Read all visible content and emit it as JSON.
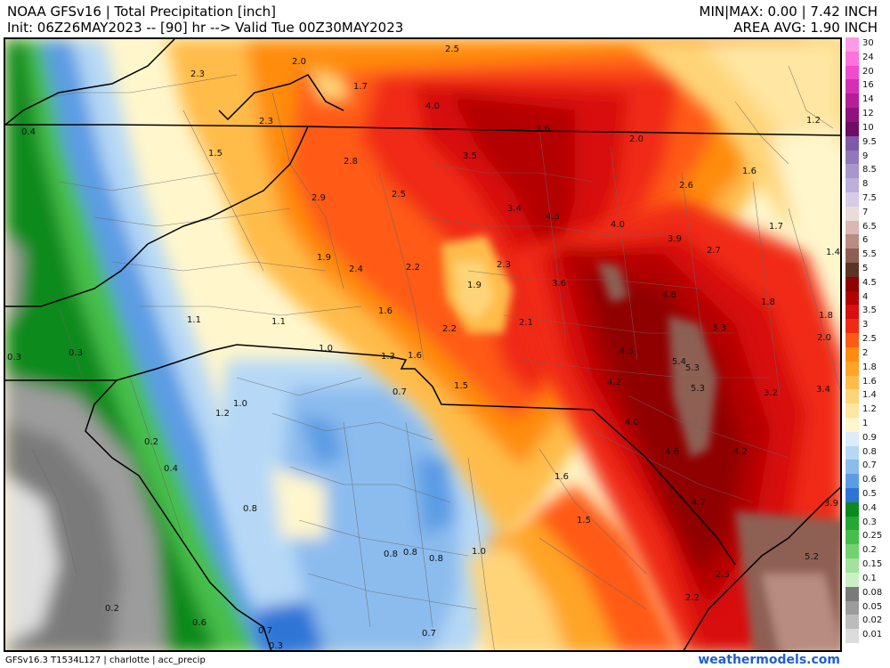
{
  "header": {
    "line1": "NOAA GFSv16 |  Total Precipitation [inch]",
    "line2": "Init: 06Z26MAY2023 -- [90] hr --> Valid Tue 00Z30MAY2023",
    "minmax": "MIN|MAX: 0.00 | 7.42 INCH",
    "area_avg": "AREA AVG: 1.90 INCH"
  },
  "footer": {
    "model_info": "GFSv16.3 T1534L127 | charlotte | acc_precip",
    "site": "weathermodels.com"
  },
  "legend": [
    {
      "label": "30",
      "color": "#ff9ae6"
    },
    {
      "label": "24",
      "color": "#ff72dc"
    },
    {
      "label": "20",
      "color": "#f04cd0"
    },
    {
      "label": "16",
      "color": "#d430b6"
    },
    {
      "label": "14",
      "color": "#b41e98"
    },
    {
      "label": "12",
      "color": "#92127c"
    },
    {
      "label": "10",
      "color": "#6e0e62"
    },
    {
      "label": "9.5",
      "color": "#7e5aa8"
    },
    {
      "label": "9",
      "color": "#9078ba"
    },
    {
      "label": "8.5",
      "color": "#a896cc"
    },
    {
      "label": "8",
      "color": "#bcb0da"
    },
    {
      "label": "7.5",
      "color": "#d6cce8"
    },
    {
      "label": "7",
      "color": "#eadcd8"
    },
    {
      "label": "6.5",
      "color": "#d8b8b0"
    },
    {
      "label": "6",
      "color": "#b88c80"
    },
    {
      "label": "5.5",
      "color": "#8e5e52"
    },
    {
      "label": "5",
      "color": "#5c3426"
    },
    {
      "label": "4.5",
      "color": "#900000"
    },
    {
      "label": "4",
      "color": "#b40000"
    },
    {
      "label": "3.5",
      "color": "#d81010"
    },
    {
      "label": "3",
      "color": "#f02a14"
    },
    {
      "label": "2.5",
      "color": "#ff5a14"
    },
    {
      "label": "2",
      "color": "#ff8c10"
    },
    {
      "label": "1.8",
      "color": "#ffa428"
    },
    {
      "label": "1.6",
      "color": "#ffbc48"
    },
    {
      "label": "1.4",
      "color": "#ffd478"
    },
    {
      "label": "1.2",
      "color": "#ffe6a2"
    },
    {
      "label": "1",
      "color": "#fff6cc"
    },
    {
      "label": "0.9",
      "color": "#dcecfa"
    },
    {
      "label": "0.8",
      "color": "#b6d8f6"
    },
    {
      "label": "0.7",
      "color": "#8cbcee"
    },
    {
      "label": "0.6",
      "color": "#5c9ce4"
    },
    {
      "label": "0.5",
      "color": "#2e74d6"
    },
    {
      "label": "0.4",
      "color": "#0c8a1e"
    },
    {
      "label": "0.3",
      "color": "#26a632"
    },
    {
      "label": "0.25",
      "color": "#46be4c"
    },
    {
      "label": "0.2",
      "color": "#72d272"
    },
    {
      "label": "0.15",
      "color": "#a2e29c"
    },
    {
      "label": "0.1",
      "color": "#ccf0c6"
    },
    {
      "label": "0.08",
      "color": "#7a7a7a"
    },
    {
      "label": "0.05",
      "color": "#9c9c9c"
    },
    {
      "label": "0.02",
      "color": "#bcbcbc"
    },
    {
      "label": "0.01",
      "color": "#dcdcdc"
    }
  ],
  "map_labels": [
    {
      "text": "2.5"
    },
    {
      "text": "2.3"
    },
    {
      "text": "2.0"
    },
    {
      "text": "1.7"
    },
    {
      "text": "4.0"
    },
    {
      "text": "3.6"
    },
    {
      "text": "2.0"
    },
    {
      "text": "1.2"
    },
    {
      "text": "0.4"
    },
    {
      "text": "2.3"
    },
    {
      "text": "1.5"
    },
    {
      "text": "2.8"
    },
    {
      "text": "3.5"
    },
    {
      "text": "1.6"
    },
    {
      "text": "2.9"
    },
    {
      "text": "2.5"
    },
    {
      "text": "3.4"
    },
    {
      "text": "4.5"
    },
    {
      "text": "4.0"
    },
    {
      "text": "2.6"
    },
    {
      "text": "1.7"
    },
    {
      "text": "3.9"
    },
    {
      "text": "2.7"
    },
    {
      "text": "1.4"
    },
    {
      "text": "1.9"
    },
    {
      "text": "2.4"
    },
    {
      "text": "2.2"
    },
    {
      "text": "2.3"
    },
    {
      "text": "1.9"
    },
    {
      "text": "3.6"
    },
    {
      "text": "4.8"
    },
    {
      "text": "1.8"
    },
    {
      "text": "1.8"
    },
    {
      "text": "1.1"
    },
    {
      "text": "1.1"
    },
    {
      "text": "1.6"
    },
    {
      "text": "2.2"
    },
    {
      "text": "2.1"
    },
    {
      "text": "3.3"
    },
    {
      "text": "2.0"
    },
    {
      "text": "0.3"
    },
    {
      "text": "0.3"
    },
    {
      "text": "1.0"
    },
    {
      "text": "1.3"
    },
    {
      "text": "1.6"
    },
    {
      "text": "4.5"
    },
    {
      "text": "5.4"
    },
    {
      "text": "5.3"
    },
    {
      "text": "1.5"
    },
    {
      "text": "0.7"
    },
    {
      "text": "4.2"
    },
    {
      "text": "5.3"
    },
    {
      "text": "3.2"
    },
    {
      "text": "3.4"
    },
    {
      "text": "1.0"
    },
    {
      "text": "1.2"
    },
    {
      "text": "4.0"
    },
    {
      "text": "0.2"
    },
    {
      "text": "4.6"
    },
    {
      "text": "4.2"
    },
    {
      "text": "0.4"
    },
    {
      "text": "1.6"
    },
    {
      "text": "0.8"
    },
    {
      "text": "4.7"
    },
    {
      "text": "3.9"
    },
    {
      "text": "1.5"
    },
    {
      "text": "1.0"
    },
    {
      "text": "0.8"
    },
    {
      "text": "0.8"
    },
    {
      "text": "0.8"
    },
    {
      "text": "5.2"
    },
    {
      "text": "2.5"
    },
    {
      "text": "0.2"
    },
    {
      "text": "2.2"
    },
    {
      "text": "0.6"
    },
    {
      "text": "0.7"
    },
    {
      "text": "0.7"
    },
    {
      "text": "0.3"
    }
  ]
}
